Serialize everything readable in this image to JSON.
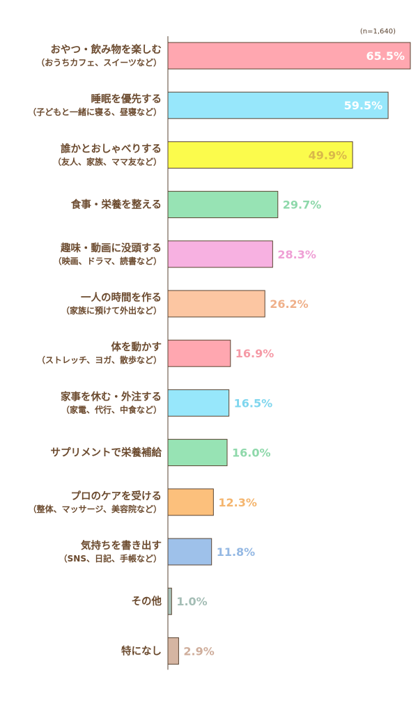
{
  "chart_data": {
    "type": "bar",
    "orientation": "horizontal",
    "note": "(n=1,640)",
    "unit": "%",
    "xlim": [
      0,
      65.5
    ],
    "categories": [
      {
        "label": "おやつ・飲み物を楽しむ",
        "sub": "（おうちカフェ、スイーツなど）",
        "value": 65.5,
        "value_label": "65.5%",
        "color": "#ffa7b0",
        "label_inside": true,
        "label_color": "#ffffff"
      },
      {
        "label": "睡眠を優先する",
        "sub": "（子どもと一緒に寝る、昼寝など）",
        "value": 59.5,
        "value_label": "59.5%",
        "color": "#97e7fb",
        "label_inside": true,
        "label_color": "#ffffff"
      },
      {
        "label": "誰かとおしゃべりする",
        "sub": "（友人、家族、ママ友など）",
        "value": 49.9,
        "value_label": "49.9%",
        "color": "#fbfb4c",
        "label_inside": true,
        "label_color": "#d9b84a"
      },
      {
        "label": "食事・栄養を整える",
        "sub": "",
        "value": 29.7,
        "value_label": "29.7%",
        "color": "#97e3b4",
        "label_inside": false,
        "label_color": "#8ed8aa"
      },
      {
        "label": "趣味・動画に没頭する",
        "sub": "（映画、ドラマ、読書など）",
        "value": 28.3,
        "value_label": "28.3%",
        "color": "#f7b1e1",
        "label_inside": false,
        "label_color": "#ef9fd5"
      },
      {
        "label": "一人の時間を作る",
        "sub": "（家族に預けて外出など）",
        "value": 26.2,
        "value_label": "26.2%",
        "color": "#fcc6a2",
        "label_inside": false,
        "label_color": "#efb08a"
      },
      {
        "label": "体を動かす",
        "sub": "（ストレッチ、ヨガ、散歩など）",
        "value": 16.9,
        "value_label": "16.9%",
        "color": "#ffa7b0",
        "label_inside": false,
        "label_color": "#f59aa6"
      },
      {
        "label": "家事を休む・外注する",
        "sub": "（家電、代行、中食など）",
        "value": 16.5,
        "value_label": "16.5%",
        "color": "#97e7fb",
        "label_inside": false,
        "label_color": "#7fd6ee"
      },
      {
        "label": "サプリメントで栄養補給",
        "sub": "",
        "value": 16.0,
        "value_label": "16.0%",
        "color": "#97e3b4",
        "label_inside": false,
        "label_color": "#8ed8aa"
      },
      {
        "label": "プロのケアを受ける",
        "sub": "（整体、マッサージ、美容院など）",
        "value": 12.3,
        "value_label": "12.3%",
        "color": "#fcc07c",
        "label_inside": false,
        "label_color": "#f4b56e"
      },
      {
        "label": "気持ちを書き出す",
        "sub": "（SNS、日記、手帳など）",
        "value": 11.8,
        "value_label": "11.8%",
        "color": "#9ec1ea",
        "label_inside": false,
        "label_color": "#94b8e3"
      },
      {
        "label": "その他",
        "sub": "",
        "value": 1.0,
        "value_label": "1.0%",
        "color": "#a8c2ba",
        "label_inside": false,
        "label_color": "#a4bdb5"
      },
      {
        "label": "特になし",
        "sub": "",
        "value": 2.9,
        "value_label": "2.9%",
        "color": "#d5b5a2",
        "label_inside": false,
        "label_color": "#cfae9c"
      }
    ],
    "axis_line_color": "#5a4330",
    "bar_border_color": "#5a4330"
  }
}
